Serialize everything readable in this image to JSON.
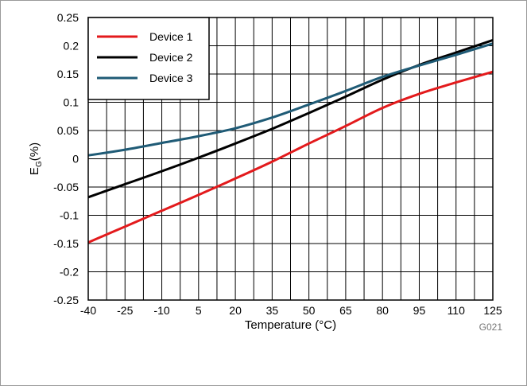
{
  "chart_data": {
    "type": "line",
    "xlabel": "Temperature (°C)",
    "ylabel": "E",
    "ylabel_sub": "G",
    "ylabel_suffix": "(%)",
    "xlim": [
      -40,
      125
    ],
    "ylim": [
      -0.25,
      0.25
    ],
    "x_ticks": [
      -40,
      -25,
      -10,
      5,
      20,
      35,
      50,
      65,
      80,
      95,
      110,
      125
    ],
    "x_tick_labels": [
      "-40",
      "-25",
      "-10",
      "5",
      "20",
      "35",
      "50",
      "65",
      "80",
      "95",
      "110",
      "125"
    ],
    "x_minor_step": 7.5,
    "y_ticks": [
      -0.25,
      -0.2,
      -0.15,
      -0.1,
      -0.05,
      0,
      0.05,
      0.1,
      0.15,
      0.2,
      0.25
    ],
    "y_tick_labels": [
      "-0.25",
      "-0.2",
      "-0.15",
      "-0.1",
      "-0.05",
      "0",
      "0.05",
      "0.1",
      "0.15",
      "0.2",
      "0.25"
    ],
    "grid": true,
    "legend_position": "top-left",
    "figure_id": "G021",
    "series": [
      {
        "name": "Device 1",
        "color": "#e31a1c",
        "x": [
          -40,
          -25,
          -10,
          5,
          20,
          35,
          50,
          65,
          80,
          95,
          110,
          125
        ],
        "y": [
          -0.148,
          -0.12,
          -0.092,
          -0.064,
          -0.035,
          -0.005,
          0.027,
          0.058,
          0.09,
          0.115,
          0.135,
          0.154
        ]
      },
      {
        "name": "Device 2",
        "color": "#000000",
        "x": [
          -40,
          -25,
          -10,
          5,
          20,
          35,
          50,
          65,
          80,
          95,
          110,
          125
        ],
        "y": [
          -0.068,
          -0.045,
          -0.022,
          0.002,
          0.027,
          0.053,
          0.081,
          0.11,
          0.14,
          0.166,
          0.188,
          0.21
        ]
      },
      {
        "name": "Device 3",
        "color": "#1f5b76",
        "x": [
          -40,
          -25,
          -10,
          5,
          20,
          35,
          50,
          65,
          80,
          95,
          110,
          125
        ],
        "y": [
          0.006,
          0.016,
          0.028,
          0.04,
          0.054,
          0.073,
          0.096,
          0.12,
          0.145,
          0.165,
          0.184,
          0.204
        ]
      }
    ]
  }
}
